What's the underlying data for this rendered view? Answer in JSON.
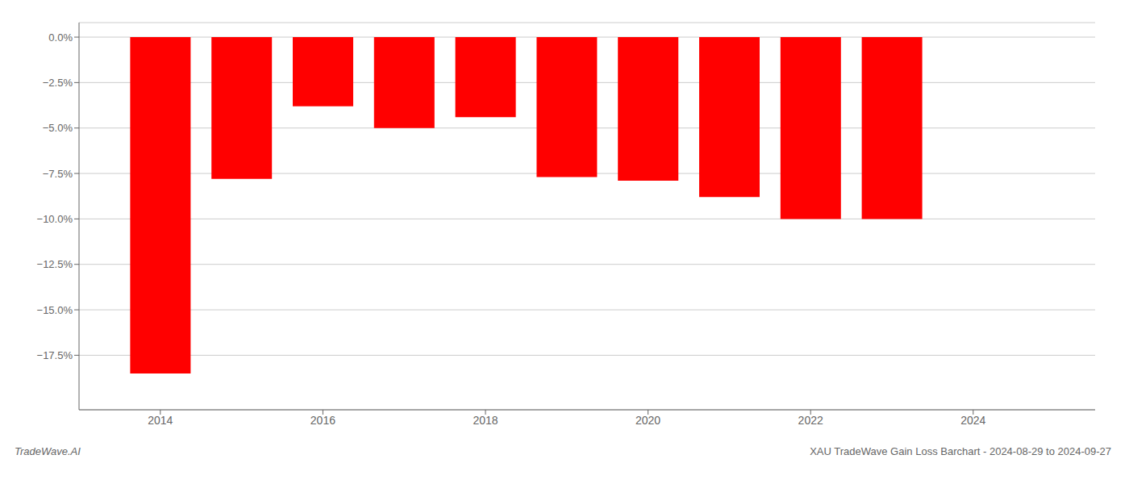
{
  "chart_data": {
    "type": "bar",
    "x": [
      2014,
      2015,
      2016,
      2017,
      2018,
      2019,
      2020,
      2021,
      2022,
      2023
    ],
    "values": [
      -18.5,
      -7.8,
      -3.8,
      -5.0,
      -4.4,
      -7.7,
      -7.9,
      -8.8,
      -10.0,
      -10.0
    ],
    "color": "#ff0000",
    "xlim": [
      2013,
      2025.5
    ],
    "xticks": [
      2014,
      2016,
      2018,
      2020,
      2022,
      2024
    ],
    "ylim": [
      -20.5,
      0.8
    ],
    "yticks": [
      {
        "value": 0.0,
        "label": "0.0%"
      },
      {
        "value": -2.5,
        "label": "−2.5%"
      },
      {
        "value": -5.0,
        "label": "−5.0%"
      },
      {
        "value": -7.5,
        "label": "−7.5%"
      },
      {
        "value": -10.0,
        "label": "−10.0%"
      },
      {
        "value": -12.5,
        "label": "−12.5%"
      },
      {
        "value": -15.0,
        "label": "−15.0%"
      },
      {
        "value": -17.5,
        "label": "−17.5%"
      }
    ],
    "grid": true,
    "annotations": [
      "TradeWave.AI",
      "XAU TradeWave Gain Loss Barchart - 2024-08-29 to 2024-09-27"
    ]
  }
}
